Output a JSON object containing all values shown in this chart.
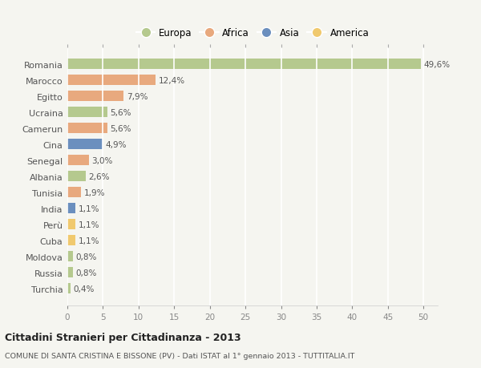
{
  "categories": [
    "Romania",
    "Marocco",
    "Egitto",
    "Ucraina",
    "Camerun",
    "Cina",
    "Senegal",
    "Albania",
    "Tunisia",
    "India",
    "Perù",
    "Cuba",
    "Moldova",
    "Russia",
    "Turchia"
  ],
  "values": [
    49.6,
    12.4,
    7.9,
    5.6,
    5.6,
    4.9,
    3.0,
    2.6,
    1.9,
    1.1,
    1.1,
    1.1,
    0.8,
    0.8,
    0.4
  ],
  "labels": [
    "49,6%",
    "12,4%",
    "7,9%",
    "5,6%",
    "5,6%",
    "4,9%",
    "3,0%",
    "2,6%",
    "1,9%",
    "1,1%",
    "1,1%",
    "1,1%",
    "0,8%",
    "0,8%",
    "0,4%"
  ],
  "colors": [
    "#b5c98e",
    "#e8a97e",
    "#e8a97e",
    "#b5c98e",
    "#e8a97e",
    "#6b8fbe",
    "#e8a97e",
    "#b5c98e",
    "#e8a97e",
    "#6b8fbe",
    "#f0c96e",
    "#f0c96e",
    "#b5c98e",
    "#b5c98e",
    "#b5c98e"
  ],
  "continent_labels": [
    "Europa",
    "Africa",
    "Asia",
    "America"
  ],
  "continent_colors": [
    "#b5c98e",
    "#e8a97e",
    "#6b8fbe",
    "#f0c96e"
  ],
  "title": "Cittadini Stranieri per Cittadinanza - 2013",
  "subtitle": "COMUNE DI SANTA CRISTINA E BISSONE (PV) - Dati ISTAT al 1° gennaio 2013 - TUTTITALIA.IT",
  "xlim": [
    0,
    52
  ],
  "xticks": [
    0,
    5,
    10,
    15,
    20,
    25,
    30,
    35,
    40,
    45,
    50
  ],
  "background_color": "#f5f5f0",
  "plot_bg_color": "#f9f9f6",
  "grid_color": "#ffffff"
}
